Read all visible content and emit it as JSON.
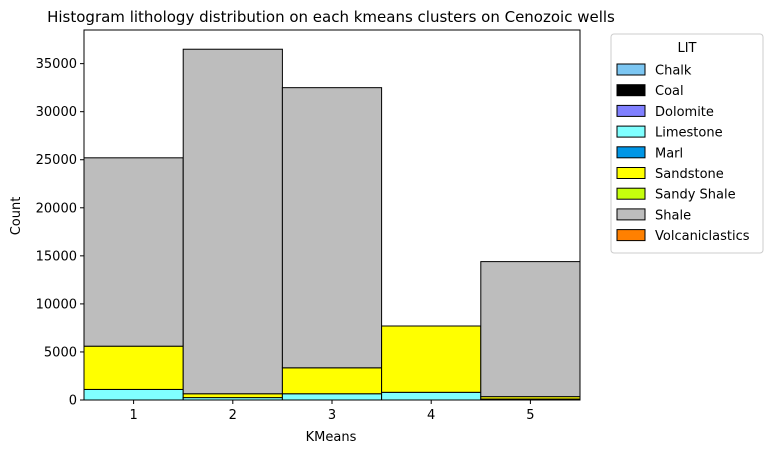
{
  "chart_data": {
    "type": "bar",
    "stacked": true,
    "title": "Histogram lithology distribution on each kmeans clusters on Cenozoic wells",
    "xlabel": "KMeans",
    "ylabel": "Count",
    "categories": [
      "1",
      "2",
      "3",
      "4",
      "5"
    ],
    "ylim": [
      0,
      38500
    ],
    "yticks": [
      0,
      5000,
      10000,
      15000,
      20000,
      25000,
      30000,
      35000
    ],
    "ytick_labels": [
      "0",
      "5000",
      "10000",
      "15000",
      "20000",
      "25000",
      "30000",
      "35000"
    ],
    "legend": {
      "title": "LIT",
      "placement": "outside-top-right"
    },
    "series": [
      {
        "name": "Chalk",
        "color": "#7cc6f2",
        "values": [
          0,
          0,
          0,
          0,
          0
        ]
      },
      {
        "name": "Coal",
        "color": "#000000",
        "values": [
          0,
          0,
          0,
          0,
          0
        ]
      },
      {
        "name": "Dolomite",
        "color": "#8080ff",
        "values": [
          0,
          0,
          0,
          0,
          0
        ]
      },
      {
        "name": "Limestone",
        "color": "#80ffff",
        "values": [
          1100,
          250,
          650,
          800,
          100
        ]
      },
      {
        "name": "Marl",
        "color": "#0096e6",
        "values": [
          0,
          0,
          0,
          0,
          0
        ]
      },
      {
        "name": "Sandstone",
        "color": "#ffff00",
        "values": [
          4500,
          400,
          2700,
          6900,
          250
        ]
      },
      {
        "name": "Sandy Shale",
        "color": "#c6ff0d",
        "values": [
          0,
          0,
          0,
          0,
          0
        ]
      },
      {
        "name": "Shale",
        "color": "#bdbdbd",
        "values": [
          19600,
          35850,
          29150,
          0,
          14050
        ]
      },
      {
        "name": "Volcaniclastics",
        "color": "#ff8000",
        "values": [
          0,
          0,
          0,
          0,
          0
        ]
      }
    ]
  }
}
